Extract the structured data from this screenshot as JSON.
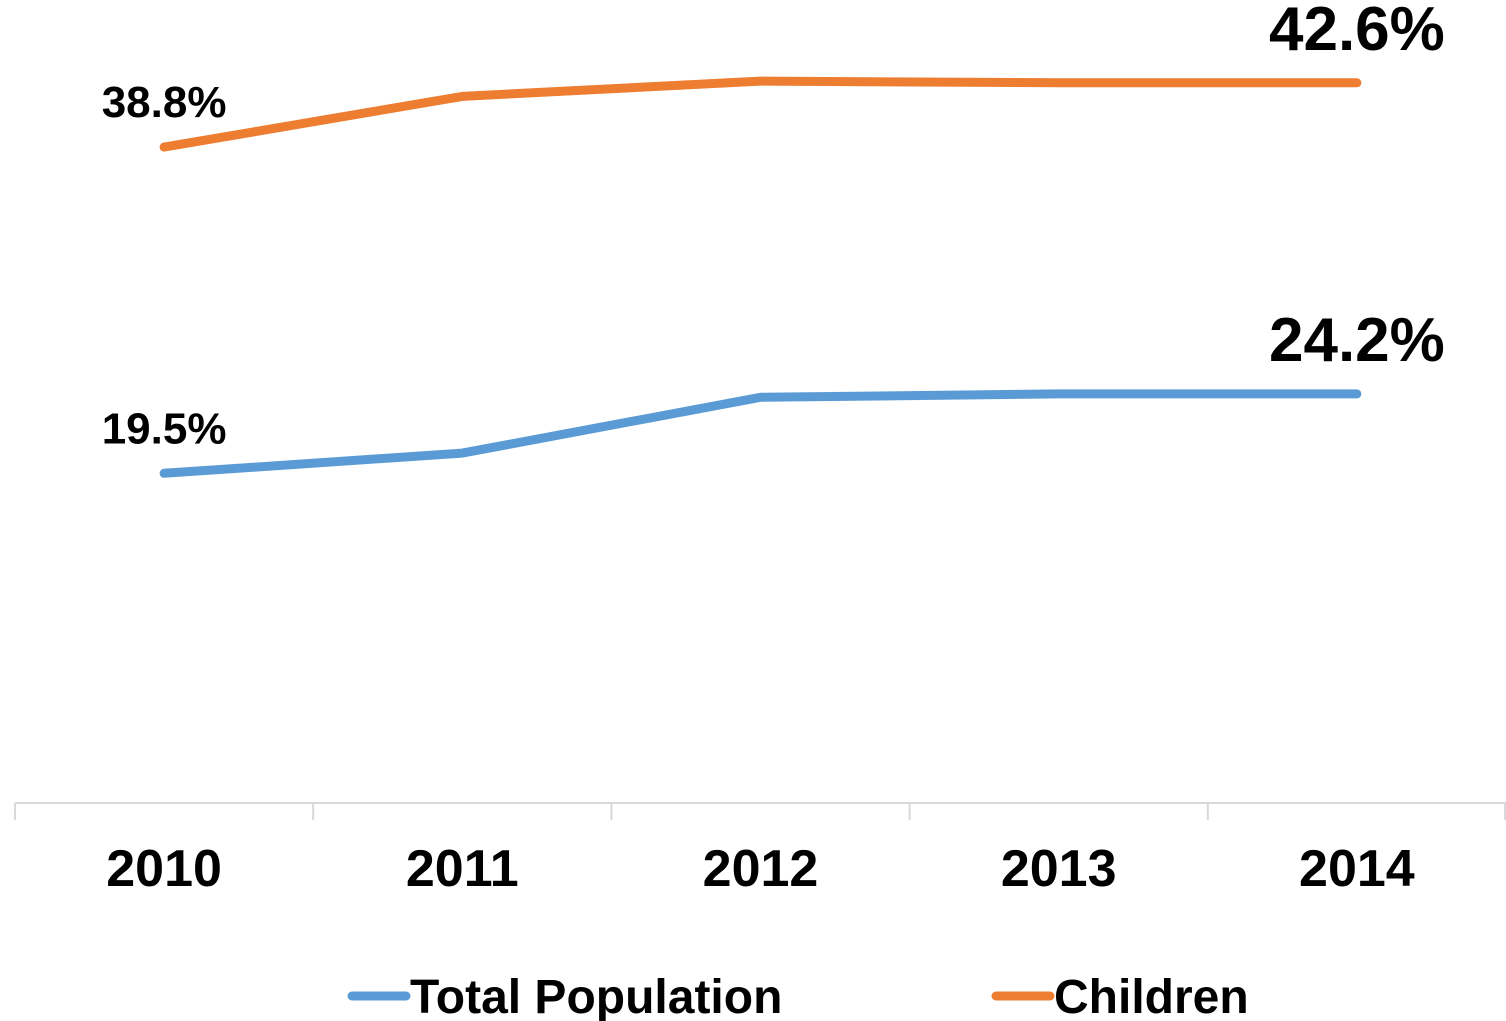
{
  "chart_data": {
    "type": "line",
    "x": [
      "2010",
      "2011",
      "2012",
      "2013",
      "2014"
    ],
    "series": [
      {
        "name": "Total Population",
        "color": "#5B9BD5",
        "values": [
          19.5,
          20.7,
          24.0,
          24.2,
          24.2
        ],
        "labels": {
          "first": "19.5%",
          "last": "24.2%"
        }
      },
      {
        "name": "Children",
        "color": "#ED7D31",
        "values": [
          38.8,
          41.8,
          42.7,
          42.6,
          42.6
        ],
        "labels": {
          "first": "38.8%",
          "last": "42.6%"
        }
      }
    ],
    "title": "",
    "xlabel": "",
    "ylabel": "",
    "ylim": [
      0,
      47.5
    ],
    "grid": false,
    "legend": "bottom",
    "axis_color": "#D9D9D9"
  }
}
